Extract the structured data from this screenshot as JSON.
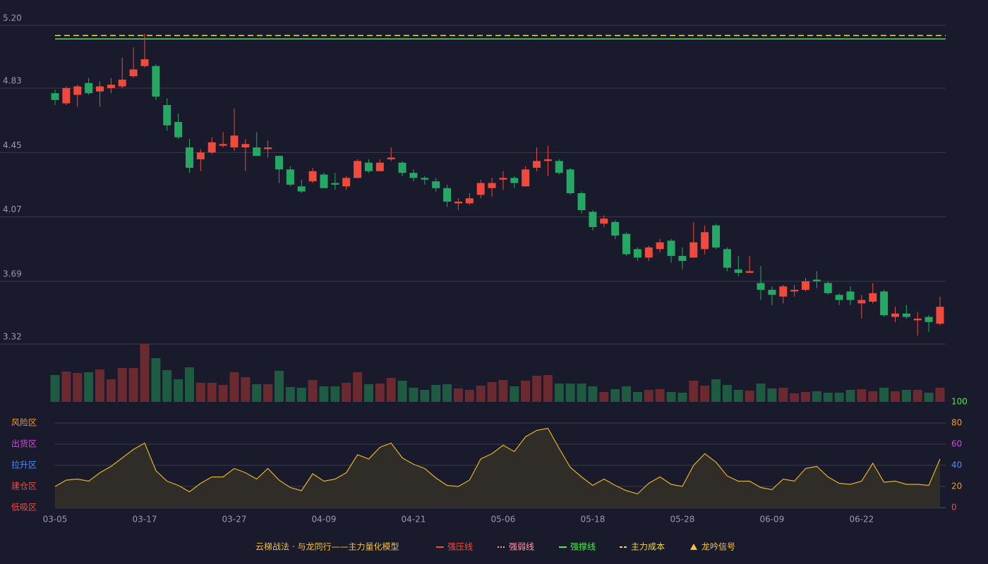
{
  "chart_data": [
    {
      "type": "candlestick",
      "ylim": [
        3.32,
        5.2
      ],
      "yticks": [
        3.32,
        3.69,
        4.07,
        4.45,
        4.83,
        {
          "value": 5.2,
          "label": "5.20"
        }
      ],
      "grid": true,
      "up_color": "#ef4a3c",
      "down_color": "#25a864",
      "open": [
        4.8,
        4.74,
        4.79,
        4.86,
        4.81,
        4.83,
        4.84,
        4.9,
        4.96,
        4.96,
        4.73,
        4.63,
        4.48,
        4.41,
        4.45,
        4.49,
        4.48,
        4.48,
        4.48,
        4.47,
        4.43,
        4.35,
        4.25,
        4.28,
        4.32,
        4.27,
        4.25,
        4.3,
        4.39,
        4.34,
        4.41,
        4.39,
        4.33,
        4.3,
        4.28,
        4.24,
        4.15,
        4.15,
        4.2,
        4.24,
        4.29,
        4.3,
        4.25,
        4.36,
        4.4,
        4.4,
        4.35,
        4.21,
        4.1,
        4.03,
        4.04,
        3.97,
        3.88,
        3.83,
        3.88,
        3.93,
        3.84,
        3.83,
        3.88,
        4.02,
        3.88,
        3.76,
        3.74,
        3.68,
        3.64,
        3.6,
        3.63,
        3.64,
        3.7,
        3.68,
        3.61,
        3.63,
        3.56,
        3.57,
        3.63,
        3.48,
        3.5,
        3.46,
        3.48,
        3.44
      ],
      "close": [
        4.76,
        4.83,
        4.84,
        4.8,
        4.84,
        4.85,
        4.88,
        4.94,
        5.0,
        4.78,
        4.61,
        4.54,
        4.36,
        4.45,
        4.51,
        4.5,
        4.55,
        4.5,
        4.43,
        4.48,
        4.35,
        4.26,
        4.22,
        4.34,
        4.24,
        4.26,
        4.3,
        4.4,
        4.34,
        4.39,
        4.42,
        4.33,
        4.3,
        4.29,
        4.24,
        4.16,
        4.16,
        4.18,
        4.27,
        4.27,
        4.3,
        4.27,
        4.35,
        4.4,
        4.41,
        4.33,
        4.21,
        4.11,
        4.01,
        4.06,
        3.96,
        3.85,
        3.83,
        3.89,
        3.92,
        3.84,
        3.81,
        3.92,
        3.98,
        3.89,
        3.77,
        3.74,
        3.75,
        3.64,
        3.61,
        3.66,
        3.64,
        3.69,
        3.69,
        3.62,
        3.58,
        3.58,
        3.58,
        3.62,
        3.49,
        3.5,
        3.48,
        3.47,
        3.45,
        3.54
      ],
      "high": [
        4.82,
        4.84,
        4.85,
        4.89,
        4.87,
        4.89,
        5.01,
        5.07,
        5.15,
        4.97,
        4.77,
        4.68,
        4.53,
        4.47,
        4.54,
        4.57,
        4.71,
        4.53,
        4.57,
        4.52,
        4.43,
        4.37,
        4.29,
        4.36,
        4.33,
        4.33,
        4.31,
        4.41,
        4.41,
        4.41,
        4.48,
        4.4,
        4.35,
        4.31,
        4.3,
        4.26,
        4.18,
        4.21,
        4.29,
        4.3,
        4.34,
        4.31,
        4.37,
        4.48,
        4.49,
        4.41,
        4.36,
        4.22,
        4.11,
        4.08,
        4.05,
        3.98,
        3.89,
        3.9,
        3.94,
        3.94,
        3.89,
        4.04,
        4.02,
        4.03,
        3.89,
        3.84,
        3.84,
        3.78,
        3.66,
        3.67,
        3.67,
        3.71,
        3.75,
        3.69,
        3.62,
        3.66,
        3.61,
        3.68,
        3.64,
        3.54,
        3.55,
        3.51,
        3.49,
        3.6
      ],
      "low": [
        4.73,
        4.73,
        4.72,
        4.79,
        4.72,
        4.8,
        4.83,
        4.89,
        4.95,
        4.76,
        4.58,
        4.53,
        4.33,
        4.34,
        4.44,
        4.48,
        4.46,
        4.34,
        4.43,
        4.42,
        4.27,
        4.25,
        4.21,
        4.27,
        4.24,
        4.23,
        4.23,
        4.3,
        4.33,
        4.34,
        4.4,
        4.31,
        4.28,
        4.26,
        4.22,
        4.13,
        4.11,
        4.14,
        4.18,
        4.19,
        4.23,
        4.24,
        4.25,
        4.34,
        4.31,
        4.32,
        4.2,
        4.09,
        3.99,
        4.01,
        3.94,
        3.84,
        3.81,
        3.81,
        3.86,
        3.8,
        3.76,
        3.83,
        3.85,
        3.88,
        3.75,
        3.72,
        3.74,
        3.58,
        3.55,
        3.56,
        3.6,
        3.63,
        3.65,
        3.61,
        3.55,
        3.55,
        3.47,
        3.56,
        3.48,
        3.45,
        3.47,
        3.37,
        3.39,
        3.43
      ],
      "legend_title": "云梯战法 · 与龙同行——主力量化模型",
      "series": [
        {
          "name": "强压线",
          "color": "#ef4a3c",
          "style": "solid"
        },
        {
          "name": "强弱线",
          "color": "#ff9aa8",
          "style": "dotted"
        },
        {
          "name": "强撑线",
          "color": "#44ee44",
          "style": "solid",
          "value": 5.12
        },
        {
          "name": "主力成本",
          "color": "#f5d742",
          "style": "dashed",
          "value": 5.14
        },
        {
          "name": "龙吟信号",
          "color": "#f5c542",
          "style": "triangle"
        }
      ]
    },
    {
      "type": "bar",
      "up_color": "#6b2a30",
      "down_color": "#1f5a42",
      "values": [
        38,
        43,
        41,
        42,
        46,
        32,
        48,
        48,
        82,
        62,
        45,
        32,
        49,
        27,
        27,
        24,
        42,
        35,
        25,
        25,
        44,
        21,
        20,
        31,
        22,
        22,
        27,
        42,
        25,
        26,
        34,
        30,
        20,
        17,
        24,
        25,
        19,
        17,
        23,
        28,
        31,
        22,
        30,
        37,
        38,
        26,
        26,
        26,
        22,
        14,
        18,
        22,
        14,
        17,
        18,
        14,
        13,
        30,
        23,
        32,
        24,
        17,
        16,
        26,
        19,
        20,
        12,
        14,
        15,
        13,
        13,
        17,
        18,
        15,
        20,
        15,
        17,
        17,
        13,
        20
      ]
    },
    {
      "type": "line",
      "color": "#e6b422",
      "ylim": [
        0,
        100
      ],
      "yticks": [
        0,
        20,
        40,
        60,
        80,
        100
      ],
      "ytick_colors": [
        "#ef4a3c",
        "#ff9900",
        "#4a8cff",
        "#e040e0",
        "#ff9900",
        "#44ee44"
      ],
      "zones": [
        {
          "label": "低吸区",
          "value": 0,
          "color": "#ef4a3c"
        },
        {
          "label": "建仓区",
          "value": 20,
          "color": "#ef4a3c"
        },
        {
          "label": "拉升区",
          "value": 40,
          "color": "#4a8cff"
        },
        {
          "label": "出货区",
          "value": 60,
          "color": "#e040e0"
        },
        {
          "label": "风险区",
          "value": 80,
          "color": "#ff9900"
        }
      ],
      "categories": [
        "03-05",
        null,
        null,
        null,
        null,
        null,
        null,
        null,
        "03-17",
        null,
        null,
        null,
        null,
        null,
        null,
        null,
        "03-27",
        null,
        null,
        null,
        null,
        null,
        null,
        null,
        "04-09",
        null,
        null,
        null,
        null,
        null,
        null,
        null,
        "04-21",
        null,
        null,
        null,
        null,
        null,
        null,
        null,
        "05-06",
        null,
        null,
        null,
        null,
        null,
        null,
        null,
        "05-18",
        null,
        null,
        null,
        null,
        null,
        null,
        null,
        "05-28",
        null,
        null,
        null,
        null,
        null,
        null,
        null,
        "06-09",
        null,
        null,
        null,
        null,
        null,
        null,
        null,
        "06-22",
        null,
        null,
        null,
        null,
        null,
        null,
        null
      ],
      "values": [
        20,
        26,
        27,
        25,
        33,
        39,
        47,
        55,
        61,
        35,
        25,
        21,
        15,
        23,
        29,
        29,
        37,
        33,
        27,
        37,
        26,
        19,
        16,
        32,
        25,
        27,
        33,
        50,
        46,
        57,
        61,
        47,
        41,
        37,
        28,
        21,
        20,
        26,
        46,
        51,
        59,
        53,
        67,
        73,
        75,
        56,
        38,
        29,
        21,
        27,
        21,
        16,
        13,
        23,
        29,
        22,
        20,
        40,
        51,
        43,
        30,
        25,
        25,
        19,
        17,
        27,
        25,
        37,
        39,
        29,
        23,
        22,
        25,
        42,
        24,
        25,
        22,
        22,
        21,
        46
      ]
    }
  ]
}
